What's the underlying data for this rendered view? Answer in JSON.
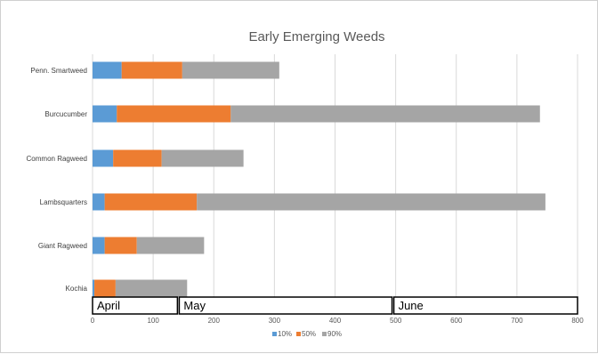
{
  "chart_data": {
    "type": "bar",
    "orientation": "horizontal",
    "stacked": true,
    "title": "Early Emerging Weeds",
    "categories": [
      "Penn. Smartweed",
      "Burcucumber",
      "Common Ragweed",
      "Lambsquarters",
      "Giant Ragweed",
      "Kochia"
    ],
    "series": [
      {
        "name": "10%",
        "color": "#5b9bd5",
        "values": [
          48,
          40,
          34,
          20,
          20,
          3
        ]
      },
      {
        "name": "50%",
        "color": "#ed7d31",
        "values": [
          100,
          188,
          80,
          152,
          53,
          35
        ]
      },
      {
        "name": "90%",
        "color": "#a5a5a5",
        "values": [
          160,
          510,
          135,
          575,
          111,
          118
        ]
      }
    ],
    "xlim": [
      0,
      800
    ],
    "xticks": [
      0,
      100,
      200,
      300,
      400,
      500,
      600,
      700,
      800
    ],
    "grid": true,
    "legend_position": "bottom",
    "annotations": [
      {
        "label": "April",
        "start": 0,
        "end": 140
      },
      {
        "label": "May",
        "start": 143,
        "end": 494
      },
      {
        "label": "June",
        "start": 497,
        "end": 800
      }
    ]
  }
}
